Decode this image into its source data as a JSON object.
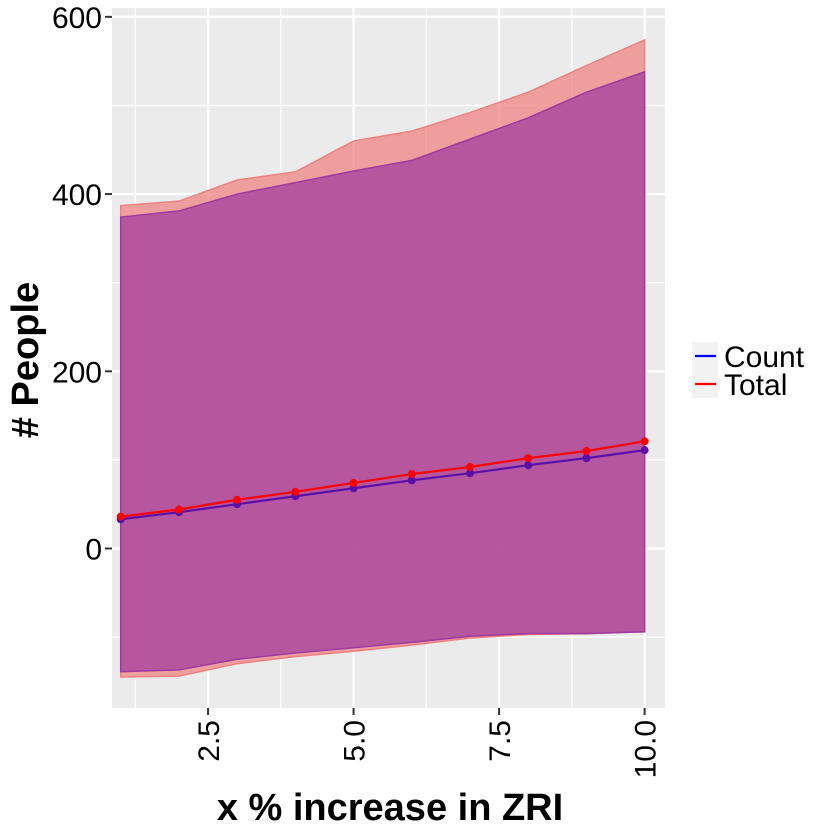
{
  "chart_data": {
    "type": "area",
    "xlabel": "x % increase in ZRI",
    "ylabel": "# People",
    "xlim": [
      0.85,
      10.35
    ],
    "ylim": [
      -180,
      610
    ],
    "x_ticks": [
      2.5,
      5.0,
      7.5,
      10.0
    ],
    "x_tick_labels": [
      "2.5",
      "5.0",
      "7.5",
      "10.0"
    ],
    "y_ticks": [
      0,
      200,
      400,
      600
    ],
    "y_tick_labels": [
      "0",
      "200",
      "400",
      "600"
    ],
    "grid": true,
    "legend_position": "right",
    "x": [
      1,
      2,
      3,
      4,
      5,
      6,
      7,
      8,
      9,
      10
    ],
    "series": [
      {
        "name": "Total",
        "color": "#ff0000",
        "ribbon_color": "#f08080",
        "values": [
          36,
          44,
          55,
          64,
          74,
          84,
          92,
          102,
          110,
          121
        ],
        "upper": [
          387,
          392,
          416,
          425,
          460,
          471,
          492,
          515,
          545,
          574
        ],
        "lower": [
          -145,
          -144,
          -130,
          -122,
          -116,
          -109,
          -101,
          -97,
          -96,
          -94
        ]
      },
      {
        "name": "Count",
        "color": "#0000ff",
        "ribbon_color": "#9e3aa0",
        "values": [
          33,
          41,
          50,
          59,
          68,
          77,
          85,
          94,
          102,
          111
        ],
        "upper": [
          374,
          381,
          400,
          413,
          426,
          438,
          462,
          486,
          515,
          538
        ],
        "lower": [
          -139,
          -137,
          -125,
          -118,
          -112,
          -106,
          -99,
          -96,
          -96,
          -94
        ]
      }
    ],
    "point_colors": {
      "Total": "#ff0000",
      "Count": "#5a10a8"
    },
    "background": "#ebebeb",
    "grid_color": "#ffffff"
  }
}
